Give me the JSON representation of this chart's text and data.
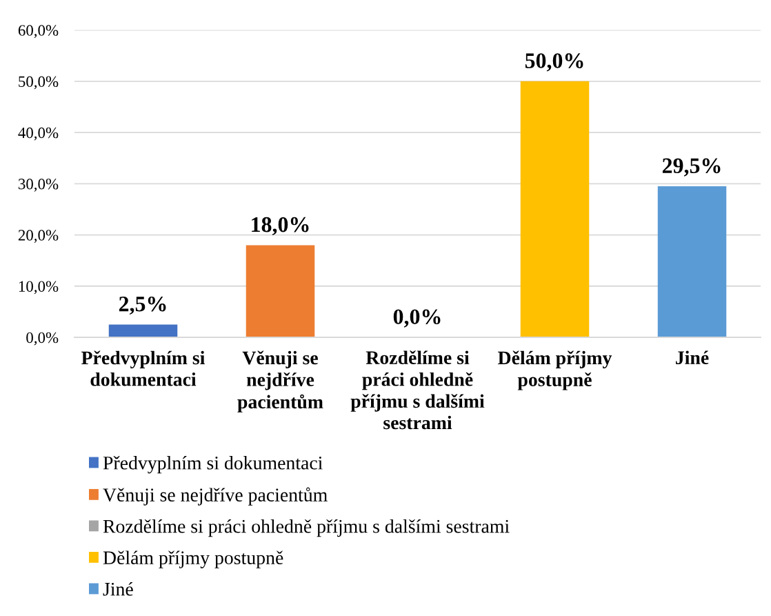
{
  "chart_data": {
    "type": "bar",
    "categories": [
      "Předvyplním si dokumentaci",
      "Věnuji se nejdříve pacientům",
      "Rozdělíme si práci ohledně příjmu s dalšími sestrami",
      "Dělám příjmy postupně",
      "Jiné"
    ],
    "series": [
      {
        "name": "Předvyplním si dokumentaci",
        "color": "#4472c4",
        "values": [
          2.5,
          null,
          null,
          null,
          null
        ],
        "value_labels": [
          "2,5%",
          null,
          null,
          null,
          null
        ]
      },
      {
        "name": "Věnuji se nejdříve pacientům",
        "color": "#ed7d31",
        "values": [
          null,
          18.0,
          null,
          null,
          null
        ],
        "value_labels": [
          null,
          "18,0%",
          null,
          null,
          null
        ]
      },
      {
        "name": "Rozdělíme si práci ohledně příjmu s dalšími sestrami",
        "color": "#a5a5a5",
        "values": [
          null,
          null,
          0.0,
          null,
          null
        ],
        "value_labels": [
          null,
          null,
          "0,0%",
          null,
          null
        ]
      },
      {
        "name": "Dělám příjmy postupně",
        "color": "#ffc000",
        "values": [
          null,
          null,
          null,
          50.0,
          null
        ],
        "value_labels": [
          null,
          null,
          null,
          "50,0%",
          null
        ]
      },
      {
        "name": "Jiné",
        "color": "#5b9bd5",
        "values": [
          null,
          null,
          null,
          null,
          29.5
        ],
        "value_labels": [
          null,
          null,
          null,
          null,
          "29,5%"
        ]
      }
    ],
    "ylim": [
      0,
      60
    ],
    "yticks": [
      {
        "value": 0,
        "label": "0,0%"
      },
      {
        "value": 10,
        "label": "10,0%"
      },
      {
        "value": 20,
        "label": "20,0%"
      },
      {
        "value": 30,
        "label": "30,0%"
      },
      {
        "value": 40,
        "label": "40,0%"
      },
      {
        "value": 50,
        "label": "50,0%"
      },
      {
        "value": 60,
        "label": "60,0%"
      }
    ],
    "grid": "y",
    "legend": "bottom left"
  }
}
